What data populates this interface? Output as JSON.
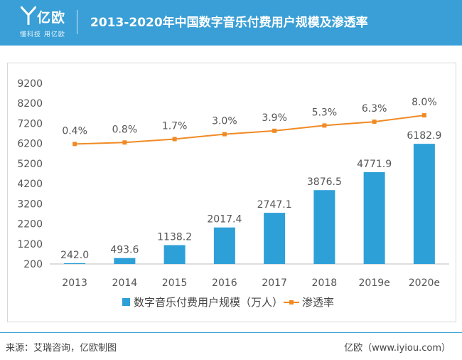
{
  "header": {
    "brand_name": "亿欧",
    "brand_tagline": "懂科技 用亿欧",
    "title": "2013-2020年中国数字音乐付费用户规模及渗透率"
  },
  "colors": {
    "header_bg": "#3a9fd6",
    "bar": "#2ea0d8",
    "line": "#f08a24"
  },
  "chart_data": {
    "type": "bar",
    "categories": [
      "2013",
      "2014",
      "2015",
      "2016",
      "2017",
      "2018",
      "2019e",
      "2020e"
    ],
    "series": [
      {
        "name": "数字音乐付费用户规模（万人）",
        "type": "bar",
        "values": [
          242.0,
          493.6,
          1138.2,
          2017.4,
          2747.1,
          3876.5,
          4771.9,
          6182.9
        ],
        "labels": [
          "242.0",
          "493.6",
          "1138.2",
          "2017.4",
          "2747.1",
          "3876.5",
          "4771.9",
          "6182.9"
        ]
      },
      {
        "name": "渗透率",
        "type": "line",
        "values": [
          0.4,
          0.8,
          1.7,
          3.0,
          3.9,
          5.3,
          6.3,
          8.0
        ],
        "labels": [
          "0.4%",
          "0.8%",
          "1.7%",
          "3.0%",
          "3.9%",
          "5.3%",
          "6.3%",
          "8.0%"
        ]
      }
    ],
    "y_ticks": [
      "200",
      "1200",
      "2200",
      "3200",
      "4200",
      "5200",
      "6200",
      "7200",
      "8200",
      "9200"
    ],
    "ylim": [
      200,
      9200
    ],
    "grid": false,
    "legend_position": "bottom"
  },
  "footer": {
    "source": "来源：艾瑞咨询，亿欧制图",
    "credit": "亿欧（www.iyiou.com）"
  }
}
